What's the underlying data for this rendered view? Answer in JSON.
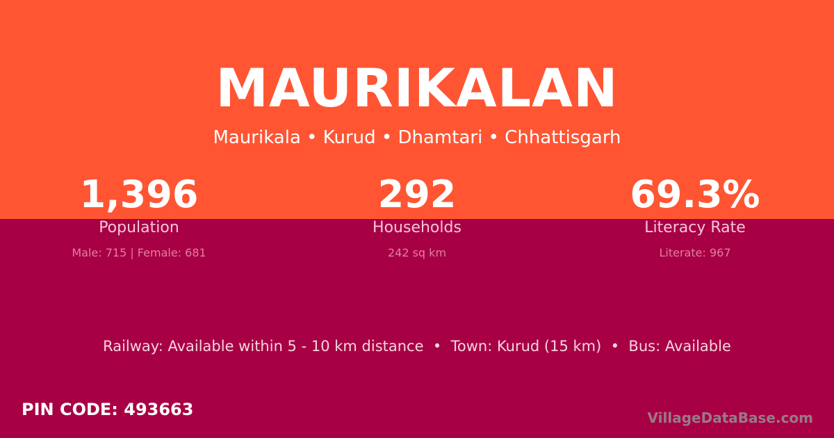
{
  "village_name": "MAURIKALAN",
  "location": "Maurikala • Kurud • Dhamtari • Chhattisgarh",
  "stats": [
    {
      "value": "1,396",
      "label": "Population",
      "detail": "Male: 715 | Female: 681"
    },
    {
      "value": "292",
      "label": "Households",
      "detail": "242 sq km"
    },
    {
      "value": "69.3%",
      "label": "Literacy Rate",
      "detail": "Literate: 967"
    }
  ],
  "connectivity": "Railway: Available within 5 - 10 km distance  •  Town: Kurud (15 km)  •  Bus: Available",
  "pin_code": "PIN CODE: 493663",
  "brand": "VillageDataBase.com",
  "colors": {
    "header": "#FF5533",
    "body": "#A80044"
  }
}
